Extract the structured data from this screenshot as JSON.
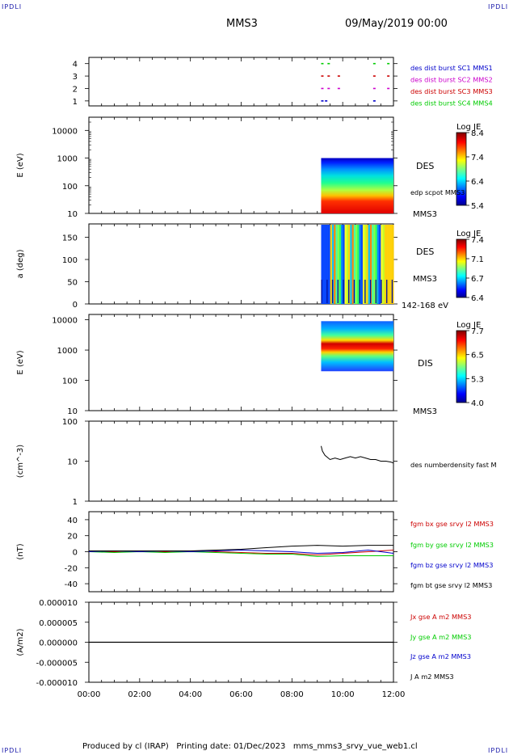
{
  "corner_label": "IPDLI",
  "header": {
    "mission": "MMS3",
    "datetime": "09/May/2019 00:00"
  },
  "footer": "Produced by cl (IRAP)   Printing date: 01/Dec/2023   mms_mms3_srvy_vue_web1.cl",
  "colors": {
    "blue": "#0000cc",
    "magenta": "#cc00cc",
    "red": "#cc0000",
    "green": "#00cc00",
    "black": "#000000"
  },
  "chart_data": [
    {
      "type": "scatter",
      "panel": "burst",
      "yticks": [
        "1",
        "2",
        "3",
        "4"
      ],
      "ylim": [
        0.6,
        4.5
      ],
      "legend": [
        "des dist burst SC1 MMS1",
        "des dist burst SC2 MMS2",
        "des dist burst SC3 MMS3",
        "des dist burst SC4 MMS4"
      ],
      "series": [
        {
          "level": 4,
          "color": "#00cc00",
          "x_hours": [
            9.15,
            9.4,
            11.2,
            11.75
          ]
        },
        {
          "level": 3,
          "color": "#cc0000",
          "x_hours": [
            9.15,
            9.4,
            9.8,
            11.2,
            11.75
          ]
        },
        {
          "level": 2,
          "color": "#cc00cc",
          "x_hours": [
            9.15,
            9.4,
            9.8,
            11.2,
            11.75
          ]
        },
        {
          "level": 1,
          "color": "#0000cc",
          "x_hours": [
            9.15,
            9.3,
            11.2
          ]
        }
      ]
    },
    {
      "type": "heatmap",
      "panel": "des_energy",
      "ylabel": "E (eV)",
      "yscale": "log",
      "ylim": [
        10,
        30000
      ],
      "yticks": [
        "10",
        "100",
        "1000",
        "10000"
      ],
      "labels": [
        "DES",
        "edp scpot MMS3",
        "MMS3"
      ],
      "colorbar": {
        "title": "Log JE",
        "ticks": [
          "8.4",
          "7.4",
          "6.4",
          "5.4"
        ],
        "range": [
          5.4,
          8.4
        ]
      },
      "data_x_hours": [
        9.15,
        12.0
      ],
      "data_energy_range_eV": [
        10,
        1000
      ]
    },
    {
      "type": "heatmap",
      "panel": "des_pitch",
      "ylabel": "a (deg)",
      "ylim": [
        0,
        180
      ],
      "yticks": [
        "0",
        "50",
        "100",
        "150"
      ],
      "labels": [
        "DES",
        "MMS3",
        "142-168 eV"
      ],
      "colorbar": {
        "title": "Log JE",
        "ticks": [
          "7.4",
          "7.1",
          "6.7",
          "6.4"
        ],
        "range": [
          6.4,
          7.4
        ]
      },
      "data_x_hours": [
        9.15,
        12.0
      ]
    },
    {
      "type": "heatmap",
      "panel": "dis_energy",
      "ylabel": "E (eV)",
      "yscale": "log",
      "ylim": [
        10,
        15000
      ],
      "yticks": [
        "10",
        "100",
        "1000",
        "10000"
      ],
      "labels": [
        "DIS",
        "MMS3"
      ],
      "colorbar": {
        "title": "Log JE",
        "ticks": [
          "7.7",
          "6.5",
          "5.3",
          "4.0"
        ],
        "range": [
          4.0,
          7.7
        ]
      },
      "data_x_hours": [
        9.15,
        12.0
      ],
      "data_energy_range_eV": [
        200,
        9000
      ]
    },
    {
      "type": "line",
      "panel": "density",
      "ylabel": "(cm^-3)",
      "yscale": "log",
      "ylim": [
        1,
        100
      ],
      "yticks": [
        "1",
        "10",
        "100"
      ],
      "legend": [
        "des numberdensity fast M"
      ],
      "x_hours": [
        9.15,
        9.2,
        9.3,
        9.5,
        9.7,
        9.9,
        10.1,
        10.3,
        10.5,
        10.7,
        10.9,
        11.1,
        11.3,
        11.5,
        11.7,
        11.9,
        12.0
      ],
      "values": [
        24,
        18,
        14,
        11,
        12,
        11,
        12,
        13,
        12,
        13,
        12,
        11,
        11,
        10,
        10,
        9.5,
        9
      ]
    },
    {
      "type": "line",
      "panel": "fgm",
      "ylabel": "(nT)",
      "ylim": [
        -50,
        50
      ],
      "yticks": [
        "-40",
        "-20",
        "0",
        "20",
        "40"
      ],
      "legend": [
        "fgm bx gse srvy l2 MMS3",
        "fgm by gse srvy l2 MMS3",
        "fgm bz gse srvy l2 MMS3",
        "fgm bt gse srvy l2 MMS3"
      ],
      "x_hours": [
        0,
        1,
        2,
        3,
        4,
        5,
        6,
        7,
        8,
        9,
        10,
        11,
        12
      ],
      "series": [
        {
          "name": "bx",
          "color": "#cc0000",
          "values": [
            0,
            0,
            1,
            0,
            1,
            0,
            -1,
            -2,
            -2,
            -4,
            -2,
            0,
            2
          ]
        },
        {
          "name": "by",
          "color": "#00cc00",
          "values": [
            0,
            -1,
            0,
            -1,
            0,
            -1,
            -2,
            -3,
            -3,
            -6,
            -5,
            -5,
            -5
          ]
        },
        {
          "name": "bz",
          "color": "#0000cc",
          "values": [
            0,
            1,
            0,
            1,
            0,
            1,
            2,
            1,
            0,
            -2,
            -1,
            2,
            -2
          ]
        },
        {
          "name": "bt",
          "color": "#000000",
          "values": [
            1,
            1,
            1,
            1,
            1,
            2,
            3,
            5,
            7,
            8,
            7,
            8,
            8
          ]
        }
      ]
    },
    {
      "type": "line",
      "panel": "current",
      "ylabel": "(A/m2)",
      "ylim": [
        -1e-05,
        1e-05
      ],
      "yticks": [
        "-0.000010",
        "-0.000005",
        "0.000000",
        "0.000005",
        "0.000010"
      ],
      "legend": [
        "Jx gse A m2 MMS3",
        "Jy gse A m2 MMS3",
        "Jz gse A m2 MMS3",
        "J A m2 MMS3"
      ],
      "x_hours": [
        0,
        12
      ],
      "series": [
        {
          "color": "#000000",
          "values": [
            0,
            0
          ]
        }
      ]
    }
  ],
  "time_axis": {
    "range_hours": [
      0,
      12
    ],
    "ticks": [
      "00:00",
      "02:00",
      "04:00",
      "06:00",
      "08:00",
      "10:00",
      "12:00"
    ]
  }
}
